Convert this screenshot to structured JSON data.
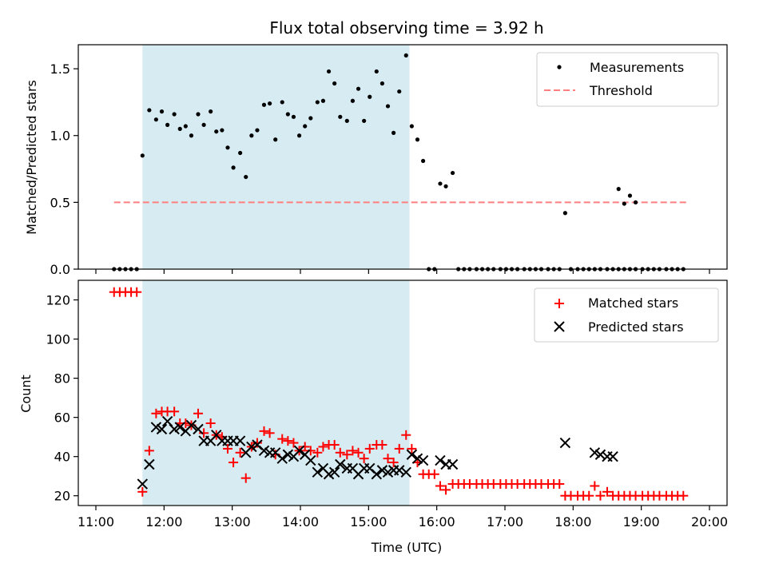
{
  "chart_data": [
    {
      "type": "scatter",
      "title": "Flux total observing time = 3.92 h",
      "ylabel": "Matched/Predicted stars",
      "xlabel": "",
      "xlim": [
        "11:00",
        "20:00"
      ],
      "ylim": [
        0,
        1.68
      ],
      "yticks": [
        "0.0",
        "0.5",
        "1.0",
        "1.5"
      ],
      "xticks_labeled": false,
      "shaded_interval": {
        "start": "11:41",
        "end": "15:36",
        "color": "#add8e6"
      },
      "legend": {
        "placement": "top-right",
        "entries": [
          "Measurements",
          "Threshold"
        ]
      },
      "threshold": {
        "name": "Threshold",
        "value": 0.5,
        "x_range": [
          "11:16",
          "19:40"
        ],
        "color": "#ff7f7f"
      },
      "series": [
        {
          "name": "Measurements",
          "marker": "dot",
          "color": "#000000",
          "points": [
            [
              "11:16",
              0
            ],
            [
              "11:21",
              0
            ],
            [
              "11:26",
              0
            ],
            [
              "11:31",
              0
            ],
            [
              "11:36",
              0
            ],
            [
              "11:41",
              0.85
            ],
            [
              "11:47",
              1.19
            ],
            [
              "11:53",
              1.12
            ],
            [
              "11:58",
              1.18
            ],
            [
              "12:03",
              1.08
            ],
            [
              "12:09",
              1.16
            ],
            [
              "12:14",
              1.05
            ],
            [
              "12:19",
              1.07
            ],
            [
              "12:24",
              1.0
            ],
            [
              "12:30",
              1.16
            ],
            [
              "12:35",
              1.08
            ],
            [
              "12:41",
              1.18
            ],
            [
              "12:46",
              1.03
            ],
            [
              "12:51",
              1.04
            ],
            [
              "12:56",
              0.91
            ],
            [
              "13:01",
              0.76
            ],
            [
              "13:07",
              0.87
            ],
            [
              "13:12",
              0.69
            ],
            [
              "13:17",
              1.0
            ],
            [
              "13:22",
              1.04
            ],
            [
              "13:28",
              1.23
            ],
            [
              "13:33",
              1.24
            ],
            [
              "13:38",
              0.97
            ],
            [
              "13:44",
              1.25
            ],
            [
              "13:49",
              1.16
            ],
            [
              "13:54",
              1.14
            ],
            [
              "13:59",
              1.0
            ],
            [
              "14:04",
              1.07
            ],
            [
              "14:09",
              1.13
            ],
            [
              "14:15",
              1.25
            ],
            [
              "14:20",
              1.26
            ],
            [
              "14:25",
              1.48
            ],
            [
              "14:30",
              1.39
            ],
            [
              "14:35",
              1.14
            ],
            [
              "14:41",
              1.11
            ],
            [
              "14:46",
              1.26
            ],
            [
              "14:51",
              1.35
            ],
            [
              "14:56",
              1.11
            ],
            [
              "15:01",
              1.29
            ],
            [
              "15:07",
              1.48
            ],
            [
              "15:12",
              1.39
            ],
            [
              "15:17",
              1.22
            ],
            [
              "15:22",
              1.02
            ],
            [
              "15:27",
              1.33
            ],
            [
              "15:33",
              1.6
            ],
            [
              "15:38",
              1.07
            ],
            [
              "15:43",
              0.97
            ],
            [
              "15:48",
              0.81
            ],
            [
              "15:53",
              0
            ],
            [
              "15:58",
              0
            ],
            [
              "16:03",
              0.64
            ],
            [
              "16:08",
              0.62
            ],
            [
              "16:14",
              0.72
            ],
            [
              "16:19",
              0
            ],
            [
              "16:24",
              0
            ],
            [
              "16:29",
              0
            ],
            [
              "16:35",
              0
            ],
            [
              "16:40",
              0
            ],
            [
              "16:45",
              0
            ],
            [
              "16:50",
              0
            ],
            [
              "16:56",
              0
            ],
            [
              "17:01",
              0
            ],
            [
              "17:06",
              0
            ],
            [
              "17:11",
              0
            ],
            [
              "17:17",
              0
            ],
            [
              "17:22",
              0
            ],
            [
              "17:27",
              0
            ],
            [
              "17:32",
              0
            ],
            [
              "17:38",
              0
            ],
            [
              "17:43",
              0
            ],
            [
              "17:48",
              0
            ],
            [
              "17:53",
              0.42
            ],
            [
              "17:58",
              0
            ],
            [
              "18:04",
              0
            ],
            [
              "18:09",
              0
            ],
            [
              "18:14",
              0
            ],
            [
              "18:19",
              0
            ],
            [
              "18:24",
              0
            ],
            [
              "18:30",
              0
            ],
            [
              "18:35",
              0
            ],
            [
              "18:40",
              0
            ],
            [
              "18:45",
              0
            ],
            [
              "18:50",
              0
            ],
            [
              "18:55",
              0
            ],
            [
              "19:01",
              0
            ],
            [
              "19:06",
              0
            ],
            [
              "19:11",
              0
            ],
            [
              "19:16",
              0
            ],
            [
              "19:22",
              0
            ],
            [
              "19:27",
              0
            ],
            [
              "19:32",
              0
            ],
            [
              "19:37",
              0
            ],
            [
              "18:40",
              0.6
            ],
            [
              "18:45",
              0.49
            ],
            [
              "18:50",
              0.55
            ],
            [
              "18:55",
              0.5
            ]
          ]
        }
      ]
    },
    {
      "type": "scatter",
      "title": "",
      "ylabel": "Count",
      "xlabel": "Time (UTC)",
      "xlim": [
        "11:00",
        "20:00"
      ],
      "ylim": [
        15,
        130
      ],
      "yticks": [
        "20",
        "40",
        "60",
        "80",
        "100",
        "120"
      ],
      "xticks": [
        "11:00",
        "12:00",
        "13:00",
        "14:00",
        "15:00",
        "16:00",
        "17:00",
        "18:00",
        "19:00",
        "20:00"
      ],
      "shaded_interval": {
        "start": "11:41",
        "end": "15:36",
        "color": "#add8e6"
      },
      "legend": {
        "placement": "top-right",
        "entries": [
          "Matched stars",
          "Predicted stars"
        ]
      },
      "series": [
        {
          "name": "Matched stars",
          "marker": "plus",
          "color": "#ff0000",
          "points": [
            [
              "11:16",
              124
            ],
            [
              "11:21",
              124
            ],
            [
              "11:26",
              124
            ],
            [
              "11:31",
              124
            ],
            [
              "11:36",
              124
            ],
            [
              "11:41",
              22
            ],
            [
              "11:47",
              43
            ],
            [
              "11:53",
              62
            ],
            [
              "11:58",
              63
            ],
            [
              "12:03",
              63
            ],
            [
              "12:09",
              63
            ],
            [
              "12:14",
              57
            ],
            [
              "12:19",
              57
            ],
            [
              "12:24",
              56
            ],
            [
              "12:30",
              62
            ],
            [
              "12:35",
              52
            ],
            [
              "12:41",
              57
            ],
            [
              "12:46",
              51
            ],
            [
              "12:51",
              50
            ],
            [
              "12:56",
              44
            ],
            [
              "13:01",
              37
            ],
            [
              "13:07",
              42
            ],
            [
              "13:12",
              29
            ],
            [
              "13:17",
              45
            ],
            [
              "13:22",
              47
            ],
            [
              "13:28",
              53
            ],
            [
              "13:33",
              52
            ],
            [
              "13:38",
              41
            ],
            [
              "13:44",
              49
            ],
            [
              "13:49",
              48
            ],
            [
              "13:54",
              47
            ],
            [
              "13:59",
              43
            ],
            [
              "14:04",
              45
            ],
            [
              "14:09",
              43
            ],
            [
              "14:15",
              42
            ],
            [
              "14:20",
              45
            ],
            [
              "14:25",
              46
            ],
            [
              "14:30",
              46
            ],
            [
              "14:35",
              42
            ],
            [
              "14:41",
              41
            ],
            [
              "14:46",
              43
            ],
            [
              "14:51",
              42
            ],
            [
              "14:56",
              39
            ],
            [
              "15:01",
              44
            ],
            [
              "15:07",
              46
            ],
            [
              "15:12",
              46
            ],
            [
              "15:17",
              39
            ],
            [
              "15:22",
              37
            ],
            [
              "15:27",
              44
            ],
            [
              "15:33",
              51
            ],
            [
              "15:38",
              44
            ],
            [
              "15:43",
              37
            ],
            [
              "15:48",
              31
            ],
            [
              "15:53",
              31
            ],
            [
              "15:58",
              31
            ],
            [
              "16:03",
              25
            ],
            [
              "16:08",
              23
            ],
            [
              "16:14",
              26
            ],
            [
              "16:19",
              26
            ],
            [
              "16:24",
              26
            ],
            [
              "16:29",
              26
            ],
            [
              "16:35",
              26
            ],
            [
              "16:40",
              26
            ],
            [
              "16:45",
              26
            ],
            [
              "16:50",
              26
            ],
            [
              "16:56",
              26
            ],
            [
              "17:01",
              26
            ],
            [
              "17:06",
              26
            ],
            [
              "17:11",
              26
            ],
            [
              "17:17",
              26
            ],
            [
              "17:22",
              26
            ],
            [
              "17:27",
              26
            ],
            [
              "17:32",
              26
            ],
            [
              "17:38",
              26
            ],
            [
              "17:43",
              26
            ],
            [
              "17:48",
              26
            ],
            [
              "17:53",
              20
            ],
            [
              "17:58",
              20
            ],
            [
              "18:04",
              20
            ],
            [
              "18:09",
              20
            ],
            [
              "18:14",
              20
            ],
            [
              "18:19",
              25
            ],
            [
              "18:24",
              20
            ],
            [
              "18:30",
              22
            ],
            [
              "18:35",
              20
            ],
            [
              "18:40",
              20
            ],
            [
              "18:45",
              20
            ],
            [
              "18:50",
              20
            ],
            [
              "18:55",
              20
            ],
            [
              "19:01",
              20
            ],
            [
              "19:06",
              20
            ],
            [
              "19:11",
              20
            ],
            [
              "19:16",
              20
            ],
            [
              "19:22",
              20
            ],
            [
              "19:27",
              20
            ],
            [
              "19:32",
              20
            ],
            [
              "19:37",
              20
            ]
          ]
        },
        {
          "name": "Predicted stars",
          "marker": "x",
          "color": "#000000",
          "points": [
            [
              "11:41",
              26
            ],
            [
              "11:47",
              36
            ],
            [
              "11:53",
              55
            ],
            [
              "11:58",
              54
            ],
            [
              "12:03",
              58
            ],
            [
              "12:09",
              54
            ],
            [
              "12:14",
              55
            ],
            [
              "12:19",
              53
            ],
            [
              "12:24",
              56
            ],
            [
              "12:30",
              54
            ],
            [
              "12:35",
              48
            ],
            [
              "12:41",
              48
            ],
            [
              "12:46",
              51
            ],
            [
              "12:51",
              48
            ],
            [
              "12:56",
              48
            ],
            [
              "13:01",
              48
            ],
            [
              "13:07",
              48
            ],
            [
              "13:12",
              42
            ],
            [
              "13:17",
              45
            ],
            [
              "13:22",
              46
            ],
            [
              "13:28",
              43
            ],
            [
              "13:33",
              42
            ],
            [
              "13:38",
              42
            ],
            [
              "13:44",
              39
            ],
            [
              "13:49",
              41
            ],
            [
              "13:54",
              40
            ],
            [
              "13:59",
              43
            ],
            [
              "14:04",
              41
            ],
            [
              "14:09",
              38
            ],
            [
              "14:15",
              32
            ],
            [
              "14:20",
              34
            ],
            [
              "14:25",
              31
            ],
            [
              "14:30",
              32
            ],
            [
              "14:35",
              36
            ],
            [
              "14:41",
              34
            ],
            [
              "14:46",
              34
            ],
            [
              "14:51",
              31
            ],
            [
              "14:56",
              34
            ],
            [
              "15:01",
              34
            ],
            [
              "15:07",
              31
            ],
            [
              "15:12",
              33
            ],
            [
              "15:17",
              32
            ],
            [
              "15:22",
              33
            ],
            [
              "15:27",
              33
            ],
            [
              "15:33",
              32
            ],
            [
              "15:38",
              41
            ],
            [
              "15:43",
              39
            ],
            [
              "15:48",
              38
            ],
            [
              "16:03",
              38
            ],
            [
              "16:08",
              36
            ],
            [
              "16:14",
              36
            ],
            [
              "17:53",
              47
            ],
            [
              "18:19",
              42
            ],
            [
              "18:24",
              41
            ],
            [
              "18:30",
              40
            ],
            [
              "18:35",
              40
            ]
          ]
        }
      ]
    }
  ]
}
